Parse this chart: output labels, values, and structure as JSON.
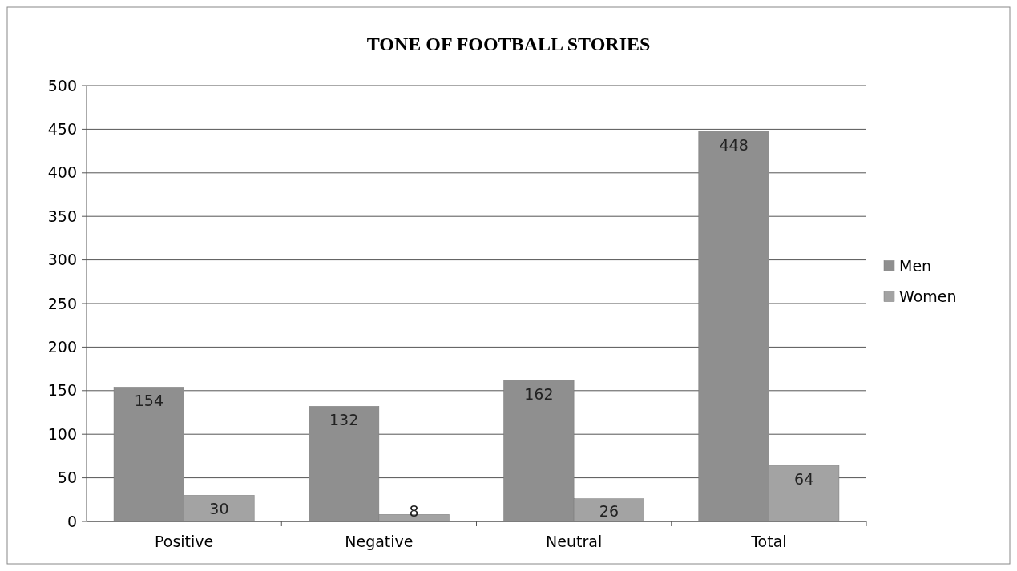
{
  "chart_data": {
    "type": "bar",
    "title": "TONE OF FOOTBALL STORIES",
    "categories": [
      "Positive",
      "Negative",
      "Neutral",
      "Total"
    ],
    "series": [
      {
        "name": "Men",
        "color": "#8f8f8f",
        "values": [
          154,
          132,
          162,
          448
        ]
      },
      {
        "name": "Women",
        "color": "#a3a3a3",
        "values": [
          30,
          8,
          26,
          64
        ]
      }
    ],
    "ylim": [
      0,
      500
    ],
    "yticks": [
      0,
      50,
      100,
      150,
      200,
      250,
      300,
      350,
      400,
      450,
      500
    ],
    "grid": "y",
    "legend": "right",
    "data_labels": true
  }
}
